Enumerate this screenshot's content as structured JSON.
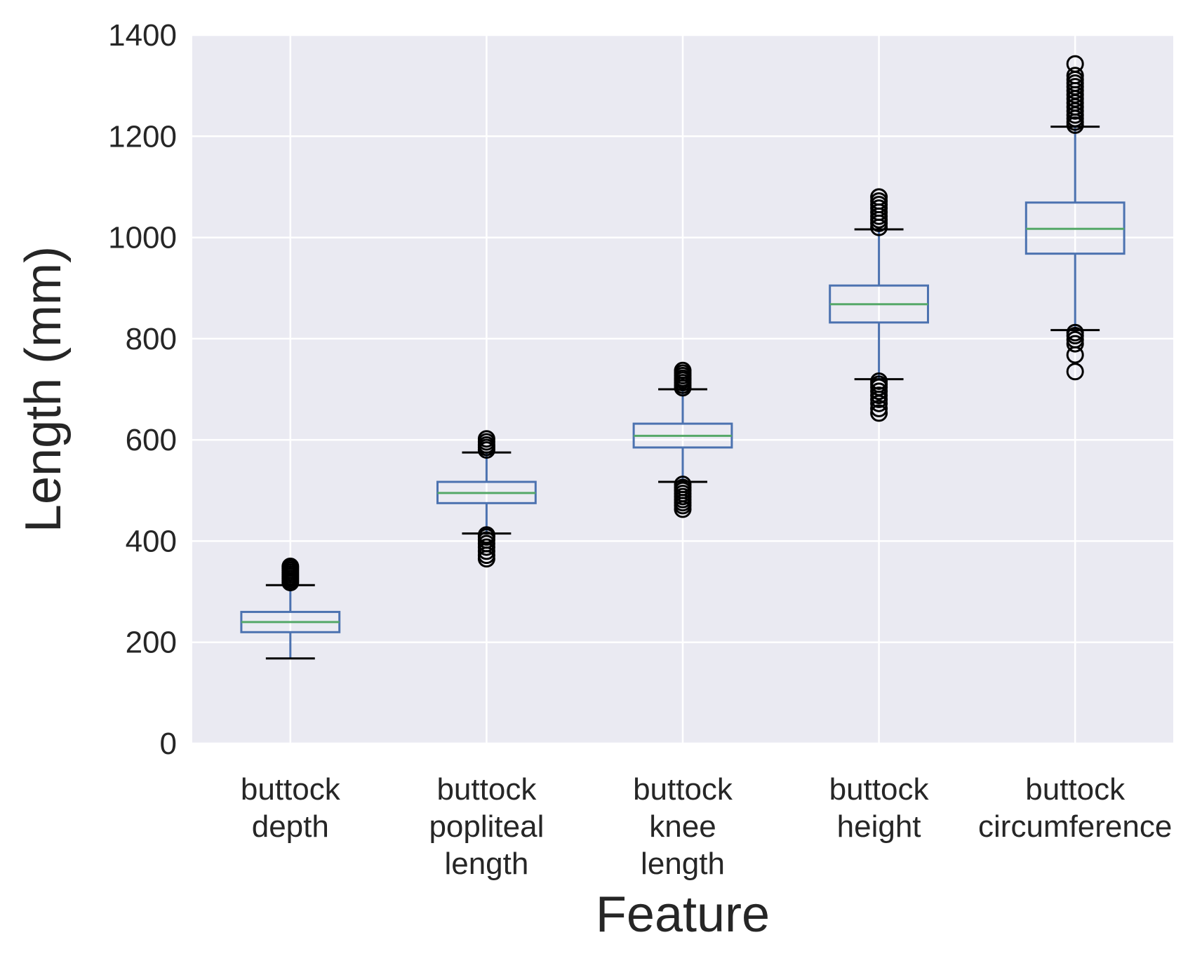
{
  "chart_data": {
    "type": "box",
    "xlabel": "Feature",
    "ylabel": "Length (mm)",
    "ylim": [
      0,
      1400
    ],
    "yticks": [
      0,
      200,
      400,
      600,
      800,
      1000,
      1200,
      1400
    ],
    "grid": true,
    "colors": {
      "background": "#eaeaf2",
      "grid": "#ffffff",
      "box": "#4c72b0",
      "median": "#55a868",
      "cap": "#000000",
      "flier": "#000000"
    },
    "categories": [
      [
        "buttock",
        "depth"
      ],
      [
        "buttock",
        "popliteal",
        "length"
      ],
      [
        "buttock",
        "knee",
        "length"
      ],
      [
        "buttock",
        "height"
      ],
      [
        "buttock",
        "circumference"
      ]
    ],
    "boxes": [
      {
        "whislo": 168,
        "q1": 220,
        "med": 240,
        "q3": 260,
        "whishi": 313,
        "fliers": [
          318,
          322,
          326,
          330,
          334,
          338,
          342,
          346,
          350
        ]
      },
      {
        "whislo": 415,
        "q1": 475,
        "med": 495,
        "q3": 517,
        "whishi": 575,
        "fliers": [
          365,
          372,
          380,
          388,
          395,
          402,
          408,
          412,
          580,
          585,
          590,
          596,
          602
        ]
      },
      {
        "whislo": 517,
        "q1": 585,
        "med": 608,
        "q3": 632,
        "whishi": 700,
        "fliers": [
          463,
          470,
          476,
          482,
          488,
          494,
          500,
          506,
          512,
          703,
          708,
          713,
          718,
          722,
          727,
          732,
          737
        ]
      },
      {
        "whislo": 720,
        "q1": 832,
        "med": 868,
        "q3": 905,
        "whishi": 1016,
        "fliers": [
          653,
          662,
          672,
          680,
          688,
          696,
          704,
          710,
          716,
          1020,
          1028,
          1035,
          1042,
          1050,
          1058,
          1065,
          1072,
          1080
        ]
      },
      {
        "whislo": 817,
        "q1": 968,
        "med": 1017,
        "q3": 1069,
        "whishi": 1219,
        "fliers": [
          735,
          768,
          790,
          798,
          806,
          812,
          1222,
          1228,
          1235,
          1242,
          1250,
          1258,
          1266,
          1274,
          1282,
          1290,
          1298,
          1305,
          1312,
          1320,
          1343
        ]
      }
    ]
  }
}
